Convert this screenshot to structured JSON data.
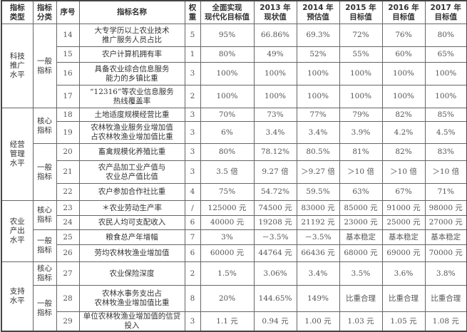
{
  "headers": [
    "指标\n类型",
    "指标\n分类",
    "序号",
    "指标名称",
    "权\n重",
    "全面实现\n现代化目标值",
    "2013 年\n现状值",
    "2014 年\n预估值",
    "2015 年\n目标值",
    "2016 年\n目标值",
    "2017 年\n目标值"
  ],
  "groups": [
    {
      "type": "科技\n推广\n水平",
      "subgroups": [
        {
          "cat": "一般\n指标",
          "rows": [
            {
              "h": 32,
              "cells": [
                "14",
                "大专学历以上农业技术\n推广服务人员占比",
                "5",
                "95%",
                "66.86%",
                "69.3%",
                "72%",
                "76%",
                "80%"
              ]
            },
            {
              "h": 22,
              "cells": [
                "15",
                "农户计算机拥有率",
                "1",
                "80%",
                "49%",
                "52%",
                "55%",
                "60%",
                "65%"
              ]
            },
            {
              "h": 32,
              "cells": [
                "16",
                "具备农业综合信息服务\n能力的乡镇比重",
                "3",
                "100%",
                "100%",
                "100%",
                "100%",
                "100%",
                "100%"
              ]
            },
            {
              "h": 32,
              "cells": [
                "17",
                "“12316”等农业信息服务\n热线覆盖率",
                "2",
                "100%",
                "100%",
                "100%",
                "100%",
                "100%",
                "100%"
              ]
            }
          ]
        }
      ]
    },
    {
      "type": "经营\n管理\n水平",
      "subgroups": [
        {
          "cat": "核心\n指标",
          "rows": [
            {
              "h": 19,
              "cells": [
                "18",
                "土地适度规模经营比重",
                "3",
                "70%",
                "73%",
                "77%",
                "79%",
                "82%",
                "85%"
              ]
            },
            {
              "h": 31,
              "cells": [
                "19",
                "农林牧渔业服务业增加值\n占农林牧渔业增加值比重",
                "3",
                "6%",
                "3.4%",
                "3.4%",
                "3.9%",
                "4.2%",
                "4.5%"
              ]
            }
          ]
        },
        {
          "cat": "一般\n指标",
          "rows": [
            {
              "h": 24,
              "cells": [
                "20",
                "畜禽规模化养殖比重",
                "3",
                "80%",
                "78.12%",
                "80.5%",
                "81%",
                "82%",
                "83%"
              ]
            },
            {
              "h": 32,
              "cells": [
                "21",
                "农产品加工业产值与\n农业总产值比值",
                "3",
                "3.5 倍",
                "9.27 倍",
                "＞9.27 倍",
                "＞10 倍",
                "＞10 倍",
                "＞10 倍"
              ]
            },
            {
              "h": 24,
              "cells": [
                "22",
                "农户参加合作社比重",
                "4",
                "75%",
                "54.72%",
                "59.5%",
                "63%",
                "67%",
                "71%"
              ]
            }
          ]
        }
      ]
    },
    {
      "type": "农业\n产出\n水平",
      "subgroups": [
        {
          "cat": "核心\n指标",
          "rows": [
            {
              "h": 21,
              "cells": [
                "23",
                "＊农业劳动生产率",
                "/",
                "125000 元",
                "74500 元",
                "83000 元",
                "85000 元",
                "91000 元",
                "98000 元"
              ]
            },
            {
              "h": 20,
              "cells": [
                "24",
                "农民人均可支配收入",
                "6",
                "40000 元",
                "19208 元",
                "21192 元",
                "23000 元",
                "25000 元",
                "27000 元"
              ]
            }
          ]
        },
        {
          "cat": "一般\n指标",
          "rows": [
            {
              "h": 21,
              "cells": [
                "25",
                "粮食总产年增幅",
                "7",
                "3%",
                "－3.5%",
                "－3.5%",
                "基本稳定",
                "基本稳定",
                "基本稳定"
              ]
            },
            {
              "h": 24,
              "cells": [
                "26",
                "劳均农林牧渔业增加值",
                "6",
                "60000 元",
                "44764 元",
                "66436 元",
                "68000 元",
                "69000 元",
                "70000 元"
              ]
            }
          ]
        }
      ]
    },
    {
      "type": "支持\n水平",
      "subgroups": [
        {
          "cat": "核心\n指标",
          "rows": [
            {
              "h": 33,
              "cells": [
                "27",
                "农业保险深度",
                "2",
                "1.5%",
                "3.06%",
                "3.4%",
                "3.5%",
                "3.6%",
                "3.8%"
              ]
            }
          ]
        },
        {
          "cat": "一般\n指标",
          "rows": [
            {
              "h": 37,
              "cells": [
                "28",
                "农林水事务支出占\n农林牧渔业增加值比重",
                "8",
                "20%",
                "144.65%",
                "149%",
                "比重合理",
                "比重合理",
                "比重合理"
              ]
            },
            {
              "h": 17,
              "cells": [
                "29",
                "单位农林牧渔业增加值的信贷投入",
                "3",
                "1.1 元",
                "0.94 元",
                "1.00 元",
                "1.03 元",
                "1.05 元",
                "1.08 元"
              ]
            }
          ]
        }
      ]
    }
  ]
}
